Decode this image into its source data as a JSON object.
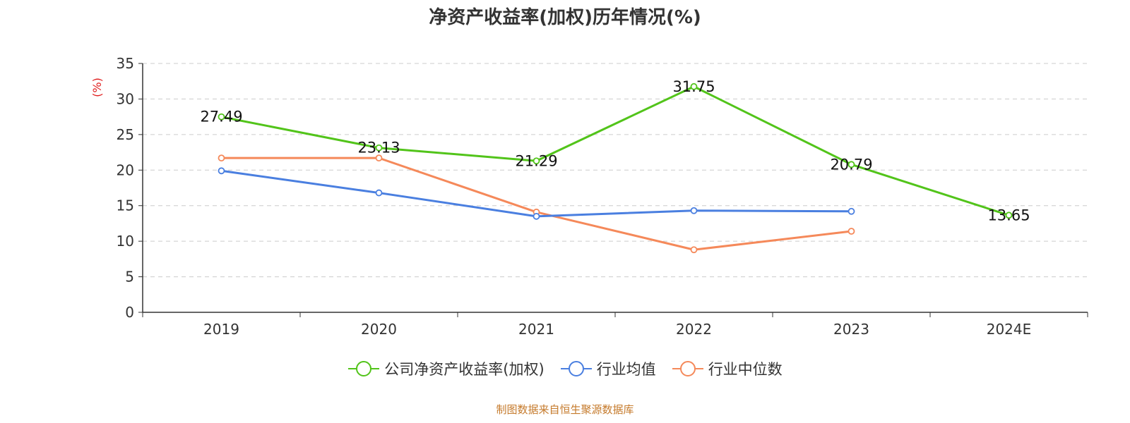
{
  "chart_data": {
    "type": "line",
    "title": "净资产收益率(加权)历年情况(%)",
    "ylabel": "(%)",
    "xlabel": "",
    "categories": [
      "2019",
      "2020",
      "2021",
      "2022",
      "2023",
      "2024E"
    ],
    "ylim": [
      0,
      35
    ],
    "yticks": [
      0,
      5,
      10,
      15,
      20,
      25,
      30,
      35
    ],
    "grid": true,
    "legend_position": "bottom",
    "series": [
      {
        "name": "公司净资产收益率(加权)",
        "color": "#52c41a",
        "values": [
          27.49,
          23.13,
          21.29,
          31.75,
          20.79,
          13.65
        ],
        "labels": [
          "27.49",
          "23.13",
          "21.29",
          "31.75",
          "20.79",
          "13.65"
        ]
      },
      {
        "name": "行业均值",
        "color": "#4a7fe0",
        "values": [
          19.9,
          16.8,
          13.5,
          14.3,
          14.2,
          null
        ]
      },
      {
        "name": "行业中位数",
        "color": "#f5895a",
        "values": [
          21.7,
          21.7,
          14.1,
          8.8,
          11.4,
          null
        ]
      }
    ]
  },
  "source": "制图数据来自恒生聚源数据库",
  "colors": {
    "axis": "#333333",
    "grid": "#cccccc",
    "ylabel": "#e02020"
  }
}
